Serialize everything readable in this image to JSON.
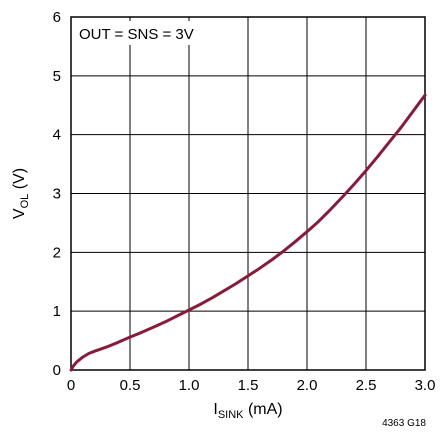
{
  "chart_data": {
    "type": "line",
    "annotation": "OUT = SNS = 3V",
    "ylabel": {
      "main": "V",
      "sub": "OL",
      "unit": " (V)"
    },
    "xlabel": {
      "main": "I",
      "sub": "SINK",
      "unit": " (mA)"
    },
    "footnote": "4363 G18",
    "xlim": [
      0,
      3
    ],
    "ylim": [
      0,
      6
    ],
    "x_ticks": [
      "0",
      "0.5",
      "1.0",
      "1.5",
      "2.0",
      "2.5",
      "3.0"
    ],
    "y_ticks": [
      "0",
      "1",
      "2",
      "3",
      "4",
      "5",
      "6"
    ],
    "grid": true,
    "line_color": "#8b1a3a",
    "series": [
      {
        "x": [
          0,
          0.02,
          0.05,
          0.1,
          0.15,
          0.2,
          0.3,
          0.4,
          0.5,
          0.6,
          0.7,
          0.8,
          0.9,
          1.0,
          1.1,
          1.2,
          1.3,
          1.4,
          1.5,
          1.6,
          1.7,
          1.8,
          1.9,
          2.0,
          2.1,
          2.2,
          2.3,
          2.4,
          2.5,
          2.6,
          2.7,
          2.8,
          2.9,
          3.0
        ],
        "y": [
          0,
          0.07,
          0.14,
          0.22,
          0.28,
          0.32,
          0.39,
          0.47,
          0.56,
          0.64,
          0.73,
          0.82,
          0.92,
          1.02,
          1.12,
          1.23,
          1.35,
          1.47,
          1.6,
          1.73,
          1.87,
          2.02,
          2.18,
          2.35,
          2.53,
          2.73,
          2.94,
          3.16,
          3.39,
          3.63,
          3.88,
          4.13,
          4.4,
          4.67
        ]
      }
    ]
  }
}
